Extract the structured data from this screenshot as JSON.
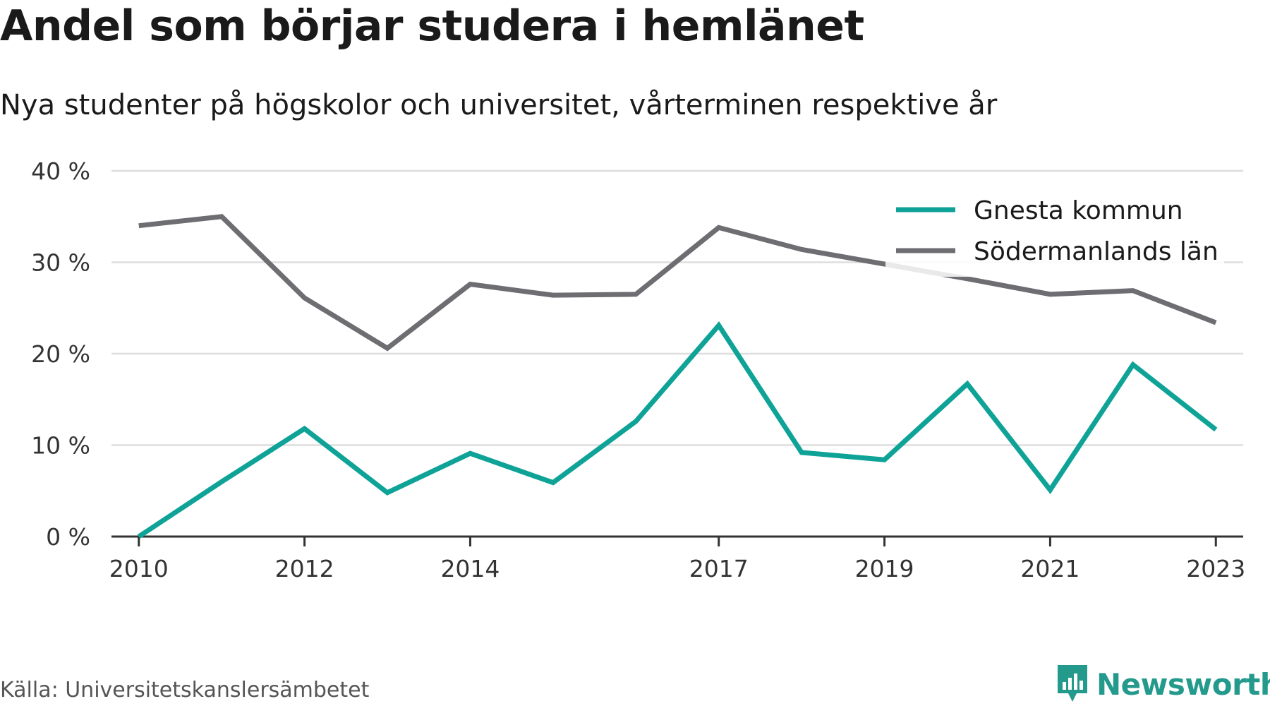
{
  "header": {
    "title": "Andel som börjar studera i hemlänet",
    "subtitle": "Nya studenter på högskolor och universitet, vårterminen respektive år"
  },
  "footer": {
    "source": "Källa: Universitetskanslersämbetet",
    "brand": "Newsworthy"
  },
  "colors": {
    "gnesta": "#0fa398",
    "sodermanland": "#6d6d72",
    "grid": "#dddddd",
    "axis": "#333333",
    "brand": "#239a8c"
  },
  "chart_data": {
    "type": "line",
    "title": "Andel som börjar studera i hemlänet",
    "subtitle": "Nya studenter på högskolor och universitet, vårterminen respektive år",
    "x": [
      2010,
      2011,
      2012,
      2013,
      2014,
      2015,
      2016,
      2017,
      2018,
      2019,
      2020,
      2021,
      2022,
      2023
    ],
    "xticks": [
      2010,
      2012,
      2014,
      2017,
      2019,
      2021,
      2023
    ],
    "xtick_labels": [
      "2010",
      "2012",
      "2014",
      "2017",
      "2019",
      "2021",
      "2023"
    ],
    "yticks": [
      0,
      10,
      20,
      30,
      40
    ],
    "ytick_labels": [
      "0 %",
      "10 %",
      "20 %",
      "30 %",
      "40 %"
    ],
    "ylim": [
      0,
      40
    ],
    "xlim": [
      2009.67,
      2023.33
    ],
    "grid": true,
    "legend_position": "top-right",
    "series": [
      {
        "name": "Gnesta kommun",
        "color": "#0fa398",
        "values": [
          0,
          6.0,
          11.8,
          4.8,
          9.1,
          5.9,
          12.6,
          23.1,
          9.2,
          8.4,
          16.7,
          5.1,
          18.8,
          11.7
        ]
      },
      {
        "name": "Södermanlands län",
        "color": "#6d6d72",
        "values": [
          34.0,
          35.0,
          26.1,
          20.6,
          27.6,
          26.4,
          26.5,
          33.8,
          31.4,
          29.8,
          28.2,
          26.5,
          26.9,
          23.4
        ]
      }
    ]
  }
}
